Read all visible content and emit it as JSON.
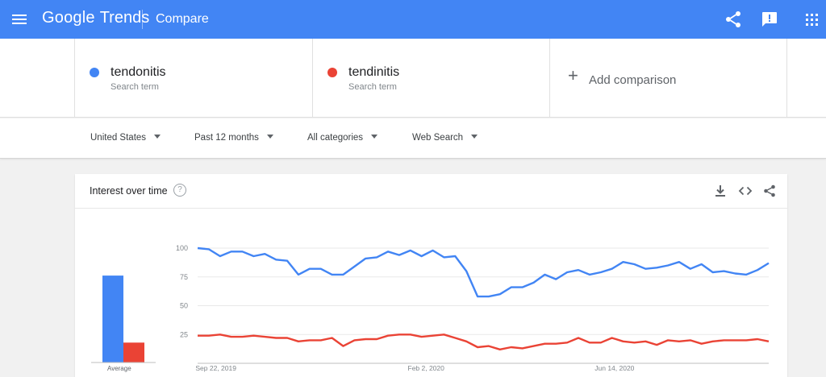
{
  "header": {
    "logo_google": "Google",
    "logo_trends": "Trends",
    "page_title": "Compare",
    "bg_color": "#4285f4",
    "icons": [
      "menu-icon",
      "share-icon",
      "feedback-icon",
      "apps-icon"
    ]
  },
  "terms": [
    {
      "name": "tendonitis",
      "sub": "Search term",
      "color": "#4285f4"
    },
    {
      "name": "tendinitis",
      "sub": "Search term",
      "color": "#ea4335"
    }
  ],
  "add_comparison": {
    "label": "Add comparison"
  },
  "filters": [
    {
      "label": "United States"
    },
    {
      "label": "Past 12 months"
    },
    {
      "label": "All categories"
    },
    {
      "label": "Web Search"
    }
  ],
  "card": {
    "title": "Interest over time",
    "help_glyph": "?",
    "icons": [
      "download-icon",
      "embed-icon",
      "share-icon"
    ],
    "average_label": "Average"
  },
  "chart_data": {
    "type": "line",
    "title": "Interest over time",
    "ylim": [
      0,
      100
    ],
    "y_ticks": [
      "100",
      "75",
      "50",
      "25"
    ],
    "x_tick_labels": [
      "Sep 22, 2019",
      "Feb 2, 2020",
      "Jun 14, 2020"
    ],
    "grid": true,
    "series": [
      {
        "name": "tendonitis",
        "color": "#4285f4",
        "average": 83,
        "values": [
          100,
          99,
          93,
          97,
          97,
          93,
          95,
          90,
          89,
          77,
          82,
          82,
          77,
          77,
          84,
          91,
          92,
          97,
          94,
          98,
          93,
          98,
          92,
          93,
          80,
          58,
          58,
          60,
          66,
          66,
          70,
          77,
          73,
          79,
          81,
          77,
          79,
          82,
          88,
          86,
          82,
          83,
          85,
          88,
          82,
          86,
          79,
          80,
          78,
          77,
          81,
          87
        ]
      },
      {
        "name": "tendinitis",
        "color": "#ea4335",
        "average": 19,
        "values": [
          24,
          24,
          25,
          23,
          23,
          24,
          23,
          22,
          22,
          19,
          20,
          20,
          22,
          15,
          20,
          21,
          21,
          24,
          25,
          25,
          23,
          24,
          25,
          22,
          19,
          14,
          15,
          12,
          14,
          13,
          15,
          17,
          17,
          18,
          22,
          18,
          18,
          22,
          19,
          18,
          19,
          16,
          20,
          19,
          20,
          17,
          19,
          20,
          20,
          20,
          21,
          19
        ]
      }
    ]
  }
}
